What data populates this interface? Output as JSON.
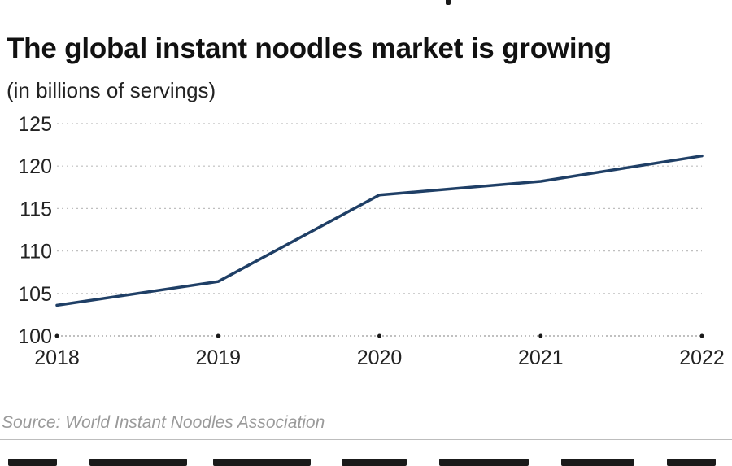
{
  "chart_data": {
    "type": "line",
    "title": "The global instant noodles market is growing",
    "subtitle": "(in billions of servings)",
    "x": [
      "2018",
      "2019",
      "2020",
      "2021",
      "2022"
    ],
    "series": [
      {
        "values": [
          103.6,
          106.4,
          116.6,
          118.2,
          121.2
        ]
      }
    ],
    "ylim": [
      100,
      125
    ],
    "yticks": [
      100,
      105,
      110,
      115,
      120,
      125
    ],
    "grid": true,
    "source": "Source: World Instant Noodles Association",
    "colors": {
      "line": "#1f3f66",
      "grid": "#bfbfbf",
      "axis": "#1a1a1a",
      "text": "#222222"
    }
  }
}
